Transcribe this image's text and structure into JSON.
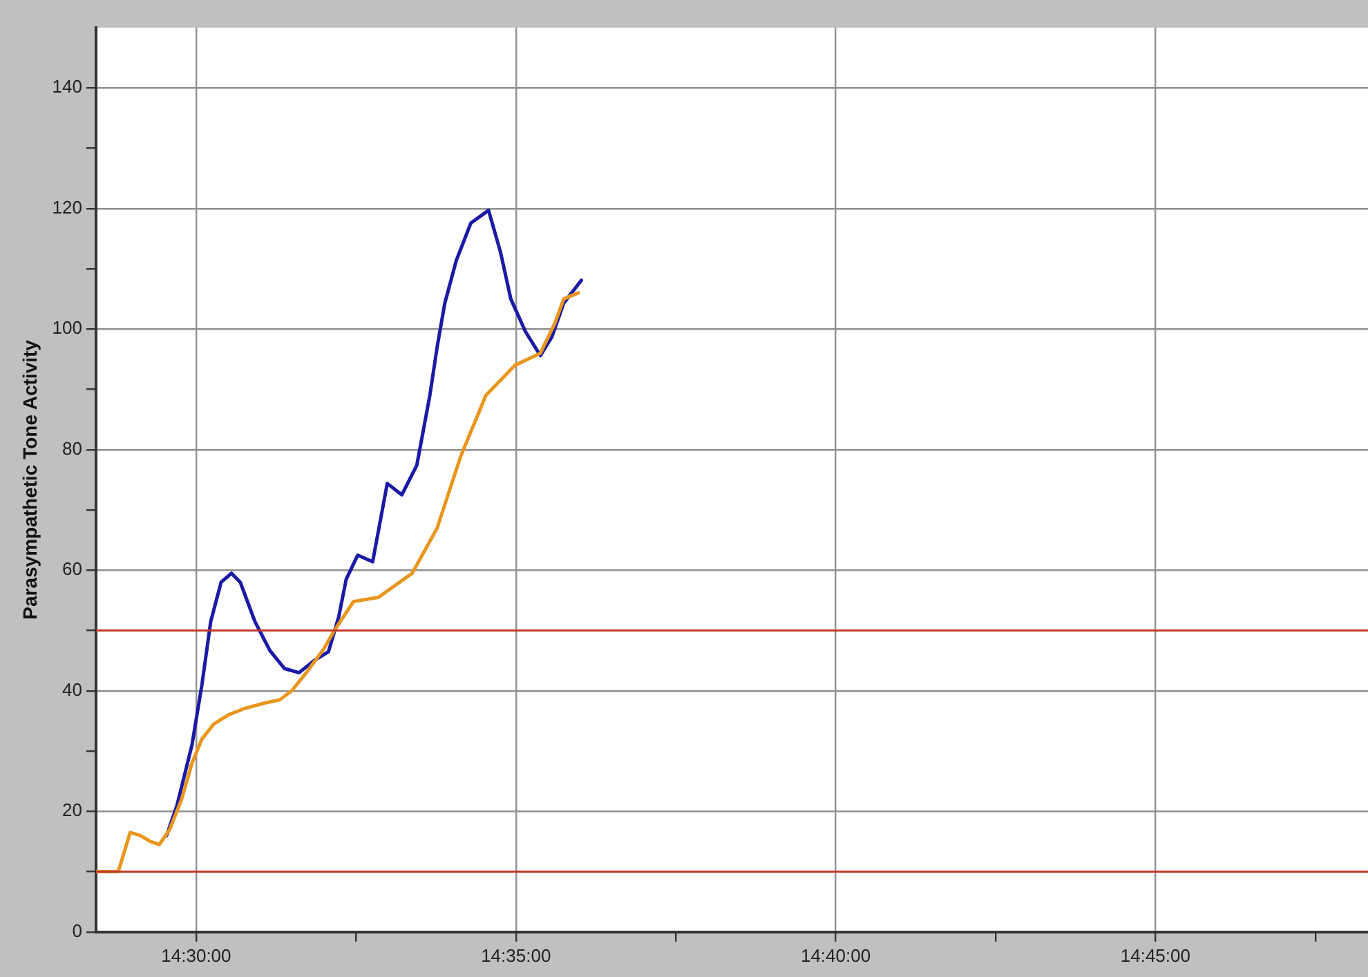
{
  "chart_data": {
    "type": "line",
    "ylabel": "Parasympathetic Tone Activity",
    "xlim": [
      14.4739,
      14.8054
    ],
    "ylim": [
      0,
      150
    ],
    "xticks": [
      {
        "value": 14.5,
        "label": "14:30:00"
      },
      {
        "value": 14.541667,
        "label": null
      },
      {
        "value": 14.583333,
        "label": "14:35:00"
      },
      {
        "value": 14.625,
        "label": null
      },
      {
        "value": 14.666667,
        "label": "14:40:00"
      },
      {
        "value": 14.708333,
        "label": null
      },
      {
        "value": 14.75,
        "label": "14:45:00"
      },
      {
        "value": 14.791667,
        "label": null
      }
    ],
    "yticks": [
      0,
      {
        "value": 10,
        "label": null
      },
      20,
      {
        "value": 30,
        "label": null
      },
      40,
      {
        "value": 50,
        "label": null
      },
      60,
      {
        "value": 70,
        "label": null
      },
      80,
      {
        "value": 90,
        "label": null
      },
      100,
      {
        "value": 110,
        "label": null
      },
      120,
      {
        "value": 130,
        "label": null
      },
      140
    ],
    "grid": true,
    "legend": false,
    "marker": "none",
    "line_style": "solid",
    "ref_lines": [
      {
        "axis": "y",
        "value": 10,
        "color": "#c0392b"
      },
      {
        "axis": "y",
        "value": 50,
        "color": "#c0392b"
      }
    ],
    "series": [
      {
        "color": "#e8961e",
        "x": [
          14.4739,
          14.4797,
          14.4828,
          14.4854,
          14.4881,
          14.4904,
          14.4931,
          14.4962,
          14.4989,
          14.5015,
          14.5046,
          14.5084,
          14.5123,
          14.518,
          14.5218,
          14.5249,
          14.5287,
          14.5333,
          14.536,
          14.541,
          14.5475,
          14.5563,
          14.5628,
          14.569,
          14.5755,
          14.5831,
          14.5897,
          14.5935,
          14.5958,
          14.5996
        ],
        "values": [
          10,
          10,
          16.5,
          16,
          15,
          14.5,
          17,
          22,
          28,
          32,
          34.5,
          36,
          37,
          38,
          38.5,
          40,
          43,
          47,
          50,
          54.8,
          55.5,
          59.5,
          67,
          79,
          89,
          94,
          96,
          101,
          105,
          106
        ]
      },
      {
        "color": "#1a1aa6",
        "x": [
          14.4923,
          14.495,
          14.4989,
          14.5015,
          14.5038,
          14.5065,
          14.5092,
          14.5115,
          14.5153,
          14.5192,
          14.523,
          14.5268,
          14.5307,
          14.5345,
          14.5372,
          14.5391,
          14.5421,
          14.546,
          14.5498,
          14.5536,
          14.5575,
          14.5609,
          14.5628,
          14.5648,
          14.5678,
          14.5716,
          14.5762,
          14.5793,
          14.582,
          14.5858,
          14.5897,
          14.5927,
          14.5958,
          14.6004
        ],
        "values": [
          16,
          21,
          31,
          41,
          51.5,
          58,
          59.5,
          58,
          51.5,
          46.7,
          43.7,
          43,
          45,
          46.5,
          52.4,
          58.5,
          62.5,
          61.4,
          74.4,
          72.5,
          77.4,
          89,
          97,
          104.3,
          111.4,
          117.6,
          119.7,
          112.8,
          105,
          99.6,
          95.6,
          98.7,
          104.3,
          108.1
        ]
      }
    ]
  }
}
